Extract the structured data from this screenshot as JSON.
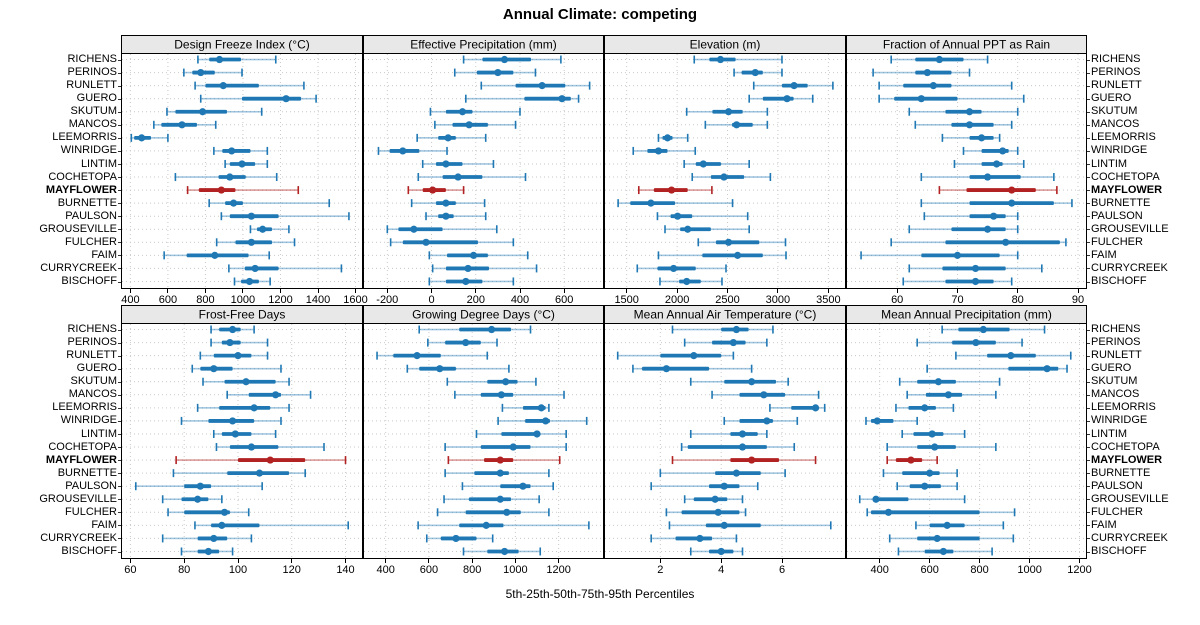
{
  "title": "Annual Climate: competing",
  "footer": "5th-25th-50th-75th-95th Percentiles",
  "highlight_site": "MAYFLOWER",
  "colors": {
    "blue": "#1f78b4",
    "blue_thin": "rgba(31,120,180,0.42)",
    "red": "#b22222",
    "red_thin": "rgba(178,34,34,0.45)",
    "strip_bg": "#e8e8e8",
    "grid": "#c9c9c9",
    "border": "#000000"
  },
  "sites": [
    "RICHENS",
    "PERINOS",
    "RUNLETT",
    "GUERO",
    "SKUTUM",
    "MANCOS",
    "LEEMORRIS",
    "WINRIDGE",
    "LINTIM",
    "COCHETOPA",
    "MAYFLOWER",
    "BURNETTE",
    "PAULSON",
    "GROUSEVILLE",
    "FULCHER",
    "FAIM",
    "CURRYCREEK",
    "BISCHOFF"
  ],
  "chart_data": {
    "type": "dotplot-percentiles",
    "percentiles": [
      5,
      25,
      50,
      75,
      95
    ],
    "layout": {
      "rows": 2,
      "cols": 4,
      "grid": "dotted",
      "legend": "none"
    },
    "panels": [
      {
        "title": "Design Freeze Index (°C)",
        "xlim": [
          350,
          1640
        ],
        "ticks": [
          400,
          600,
          800,
          1000,
          1200,
          1400,
          1600
        ],
        "rows": [
          [
            760,
            820,
            875,
            990,
            1175
          ],
          [
            685,
            730,
            775,
            850,
            995
          ],
          [
            745,
            800,
            895,
            1085,
            1325
          ],
          [
            775,
            995,
            1230,
            1310,
            1390
          ],
          [
            595,
            640,
            785,
            915,
            1100
          ],
          [
            525,
            565,
            675,
            755,
            855
          ],
          [
            405,
            420,
            460,
            510,
            600
          ],
          [
            845,
            890,
            940,
            1040,
            1130
          ],
          [
            905,
            930,
            995,
            1065,
            1130
          ],
          [
            640,
            870,
            930,
            1015,
            1180
          ],
          [
            705,
            765,
            885,
            960,
            1295
          ],
          [
            820,
            905,
            950,
            1000,
            1460
          ],
          [
            885,
            930,
            1045,
            1190,
            1565
          ],
          [
            1040,
            1075,
            1105,
            1155,
            1245
          ],
          [
            860,
            960,
            1045,
            1155,
            1275
          ],
          [
            580,
            700,
            850,
            1030,
            1140
          ],
          [
            925,
            1010,
            1065,
            1190,
            1525
          ],
          [
            955,
            990,
            1035,
            1085,
            1145
          ]
        ]
      },
      {
        "title": "Effective Precipitation (mm)",
        "xlim": [
          -310,
          780
        ],
        "ticks": [
          -200,
          0,
          200,
          400,
          600
        ],
        "rows": [
          [
            145,
            230,
            330,
            450,
            585
          ],
          [
            105,
            205,
            300,
            370,
            470
          ],
          [
            225,
            380,
            500,
            605,
            715
          ],
          [
            155,
            420,
            590,
            630,
            665
          ],
          [
            -5,
            65,
            140,
            185,
            400
          ],
          [
            15,
            95,
            170,
            255,
            380
          ],
          [
            -65,
            30,
            75,
            110,
            245
          ],
          [
            -240,
            -190,
            -130,
            -55,
            70
          ],
          [
            -40,
            20,
            65,
            140,
            280
          ],
          [
            -60,
            50,
            120,
            230,
            425
          ],
          [
            -105,
            -40,
            5,
            65,
            145
          ],
          [
            -90,
            20,
            65,
            110,
            240
          ],
          [
            -25,
            30,
            65,
            100,
            245
          ],
          [
            -200,
            -150,
            -80,
            50,
            295
          ],
          [
            -185,
            -130,
            -25,
            210,
            370
          ],
          [
            -10,
            70,
            190,
            255,
            435
          ],
          [
            5,
            65,
            165,
            260,
            475
          ],
          [
            -10,
            65,
            155,
            230,
            370
          ]
        ]
      },
      {
        "title": "Elevation (m)",
        "xlim": [
          1275,
          3675
        ],
        "ticks": [
          1500,
          2000,
          2500,
          3000,
          3500
        ],
        "rows": [
          [
            2170,
            2320,
            2430,
            2580,
            3040
          ],
          [
            2565,
            2640,
            2775,
            2850,
            3040
          ],
          [
            2760,
            3040,
            3160,
            3295,
            3545
          ],
          [
            2715,
            2850,
            3090,
            3155,
            3345
          ],
          [
            2095,
            2350,
            2510,
            2650,
            2895
          ],
          [
            2280,
            2545,
            2590,
            2750,
            2895
          ],
          [
            1815,
            1855,
            1905,
            1955,
            2105
          ],
          [
            1565,
            1705,
            1815,
            1905,
            2180
          ],
          [
            2070,
            2185,
            2260,
            2435,
            2715
          ],
          [
            2150,
            2335,
            2465,
            2665,
            2925
          ],
          [
            1620,
            1770,
            1945,
            2105,
            2345
          ],
          [
            1415,
            1535,
            1740,
            1980,
            2550
          ],
          [
            1805,
            1935,
            2005,
            2150,
            2700
          ],
          [
            1880,
            2030,
            2105,
            2335,
            2715
          ],
          [
            2210,
            2385,
            2510,
            2815,
            3075
          ],
          [
            1815,
            2250,
            2600,
            2850,
            3080
          ],
          [
            1605,
            1805,
            1965,
            2185,
            2485
          ],
          [
            1830,
            2020,
            2095,
            2235,
            2445
          ]
        ]
      },
      {
        "title": "Fraction of Annual PPT as Rain",
        "xlim": [
          51.5,
          91.5
        ],
        "ticks": [
          60,
          70,
          80,
          90
        ],
        "rows": [
          [
            59,
            63,
            67,
            71,
            75
          ],
          [
            56,
            63,
            65,
            69,
            72
          ],
          [
            57,
            61,
            66,
            69,
            79
          ],
          [
            57,
            59.5,
            64,
            70,
            81
          ],
          [
            62,
            68,
            72,
            74,
            80
          ],
          [
            63,
            69,
            72,
            76,
            79
          ],
          [
            67.5,
            72,
            74,
            76,
            77
          ],
          [
            71,
            74,
            77.5,
            78.5,
            80
          ],
          [
            69.5,
            74,
            76.5,
            77.5,
            81
          ],
          [
            64,
            72,
            75,
            80.5,
            86
          ],
          [
            67,
            71.5,
            79,
            83,
            86.5
          ],
          [
            64,
            72,
            79,
            86,
            89
          ],
          [
            64.5,
            72,
            76,
            78,
            80
          ],
          [
            62,
            69,
            75,
            78,
            80
          ],
          [
            59,
            68,
            78,
            87,
            88
          ],
          [
            54,
            64,
            70,
            77,
            80
          ],
          [
            62,
            67.5,
            73,
            78,
            84
          ],
          [
            61,
            68,
            73,
            76,
            79
          ]
        ]
      },
      {
        "title": "Frost-Free Days",
        "xlim": [
          56.5,
          146.5
        ],
        "ticks": [
          60,
          80,
          100,
          120,
          140
        ],
        "rows": [
          [
            90,
            93,
            98,
            101,
            106
          ],
          [
            90,
            94,
            97,
            101,
            111
          ],
          [
            86,
            91,
            100,
            105,
            111
          ],
          [
            83,
            86,
            91,
            98,
            116
          ],
          [
            87,
            95,
            103,
            114,
            119
          ],
          [
            96,
            104,
            114,
            116,
            127
          ],
          [
            85,
            93,
            106,
            112,
            119
          ],
          [
            79,
            89,
            98,
            106,
            116
          ],
          [
            91,
            94,
            99,
            105,
            114
          ],
          [
            92,
            97,
            105,
            115,
            132
          ],
          [
            77,
            100,
            112,
            125,
            140
          ],
          [
            76,
            96,
            108,
            119,
            125
          ],
          [
            62,
            80,
            86,
            90,
            109
          ],
          [
            72,
            79,
            85,
            89,
            94
          ],
          [
            74,
            80,
            95,
            97,
            104
          ],
          [
            84,
            90,
            94,
            108,
            141
          ],
          [
            72,
            85,
            91,
            96,
            105
          ],
          [
            79,
            85,
            89,
            93,
            98
          ]
        ]
      },
      {
        "title": "Growing Degree Days (°C)",
        "xlim": [
          295,
          1410
        ],
        "ticks": [
          400,
          600,
          800,
          1000,
          1200
        ],
        "rows": [
          [
            555,
            740,
            890,
            980,
            1070
          ],
          [
            595,
            675,
            770,
            840,
            915
          ],
          [
            360,
            435,
            545,
            655,
            870
          ],
          [
            500,
            555,
            650,
            725,
            970
          ],
          [
            685,
            870,
            955,
            1010,
            1095
          ],
          [
            720,
            840,
            935,
            990,
            1225
          ],
          [
            940,
            1035,
            1120,
            1140,
            1155
          ],
          [
            920,
            1045,
            1140,
            1160,
            1330
          ],
          [
            820,
            935,
            1100,
            1115,
            1235
          ],
          [
            675,
            840,
            990,
            1070,
            1235
          ],
          [
            690,
            855,
            930,
            990,
            1205
          ],
          [
            675,
            810,
            930,
            970,
            1155
          ],
          [
            755,
            930,
            1035,
            1070,
            1175
          ],
          [
            670,
            785,
            930,
            980,
            1110
          ],
          [
            640,
            770,
            960,
            1025,
            1155
          ],
          [
            550,
            740,
            865,
            945,
            1340
          ],
          [
            590,
            655,
            725,
            820,
            895
          ],
          [
            760,
            870,
            950,
            1015,
            1115
          ]
        ]
      },
      {
        "title": "Mean Annual Air Temperature (°C)",
        "xlim": [
          0.15,
          8.1
        ],
        "ticks": [
          2,
          4,
          6
        ],
        "rows": [
          [
            2.4,
            4.0,
            4.5,
            4.9,
            5.7
          ],
          [
            2.8,
            3.7,
            4.4,
            4.8,
            5.5
          ],
          [
            0.6,
            2.0,
            3.1,
            4.0,
            4.4
          ],
          [
            1.1,
            1.4,
            2.2,
            3.6,
            5.0
          ],
          [
            3.0,
            4.1,
            5.0,
            5.8,
            6.2
          ],
          [
            3.7,
            4.6,
            5.4,
            6.1,
            7.2
          ],
          [
            5.6,
            6.3,
            7.1,
            7.2,
            7.4
          ],
          [
            4.1,
            4.6,
            5.5,
            5.7,
            6.5
          ],
          [
            3.0,
            4.3,
            4.7,
            5.2,
            5.5
          ],
          [
            2.7,
            2.9,
            4.7,
            5.5,
            6.4
          ],
          [
            2.4,
            4.3,
            5.0,
            5.9,
            7.1
          ],
          [
            2.0,
            3.8,
            4.5,
            5.3,
            6.1
          ],
          [
            1.7,
            3.6,
            4.1,
            4.6,
            5.2
          ],
          [
            2.8,
            3.1,
            3.8,
            4.2,
            4.7
          ],
          [
            2.2,
            2.7,
            3.9,
            4.6,
            4.8
          ],
          [
            2.3,
            3.5,
            4.1,
            5.3,
            7.6
          ],
          [
            1.7,
            2.5,
            3.3,
            3.7,
            4.5
          ],
          [
            3.0,
            3.6,
            4.0,
            4.4,
            4.7
          ]
        ]
      },
      {
        "title": "Mean Annual Precipitation (mm)",
        "xlim": [
          265,
          1230
        ],
        "ticks": [
          400,
          600,
          800,
          1000,
          1200
        ],
        "rows": [
          [
            650,
            715,
            815,
            920,
            1060
          ],
          [
            550,
            690,
            785,
            865,
            970
          ],
          [
            705,
            830,
            925,
            1025,
            1165
          ],
          [
            590,
            915,
            1070,
            1115,
            1150
          ],
          [
            480,
            550,
            635,
            705,
            880
          ],
          [
            510,
            585,
            675,
            730,
            865
          ],
          [
            465,
            515,
            580,
            625,
            695
          ],
          [
            345,
            365,
            390,
            455,
            550
          ],
          [
            490,
            535,
            610,
            655,
            740
          ],
          [
            430,
            550,
            620,
            705,
            865
          ],
          [
            430,
            465,
            525,
            570,
            630
          ],
          [
            415,
            490,
            600,
            640,
            710
          ],
          [
            470,
            520,
            580,
            645,
            710
          ],
          [
            320,
            375,
            385,
            515,
            740
          ],
          [
            350,
            365,
            435,
            800,
            940
          ],
          [
            545,
            600,
            670,
            740,
            895
          ],
          [
            440,
            550,
            630,
            800,
            935
          ],
          [
            475,
            580,
            655,
            695,
            850
          ]
        ]
      }
    ]
  }
}
